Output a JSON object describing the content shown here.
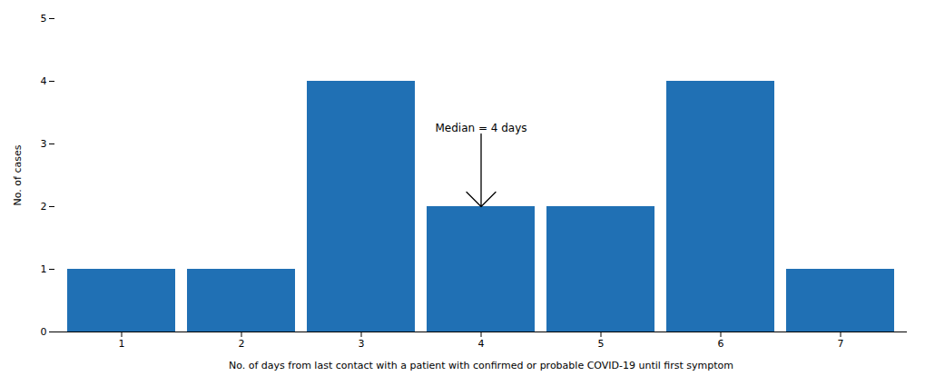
{
  "chart_data": {
    "type": "bar",
    "xlabel": "No. of days from last contact with a patient with confirmed or probable COVID-19 until first symptom",
    "ylabel": "No. of cases",
    "categories": [
      1,
      2,
      3,
      4,
      5,
      6,
      7
    ],
    "values": [
      1,
      1,
      4,
      2,
      2,
      4,
      1
    ],
    "color": "#2070B4",
    "ylim": [
      0,
      5
    ],
    "yticks": [
      0,
      1,
      2,
      3,
      4,
      5
    ],
    "annotations": [
      {
        "text": "Median = 4 days",
        "x": 4
      }
    ]
  }
}
